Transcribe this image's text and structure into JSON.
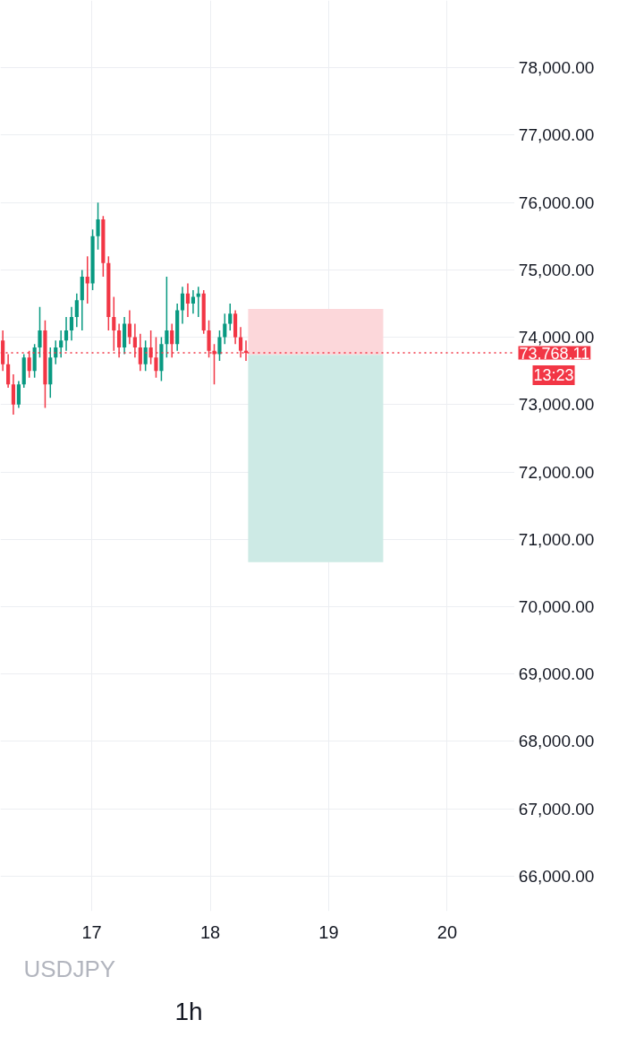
{
  "chart_data": {
    "type": "candlestick",
    "x": [
      16.25,
      16.295,
      16.339,
      16.384,
      16.428,
      16.473,
      16.518,
      16.562,
      16.607,
      16.651,
      16.696,
      16.741,
      16.785,
      16.83,
      16.874,
      16.919,
      16.964,
      17.008,
      17.053,
      17.097,
      17.142,
      17.187,
      17.231,
      17.276,
      17.32,
      17.365,
      17.41,
      17.454,
      17.499,
      17.543,
      17.588,
      17.633,
      17.677,
      17.722,
      17.766,
      17.811,
      17.856,
      17.9,
      17.945,
      17.989,
      18.034,
      18.079,
      18.123,
      18.168,
      18.212,
      18.257,
      18.302
    ],
    "ohlc": [
      [
        73950,
        74100,
        73500,
        73600
      ],
      [
        73600,
        73750,
        73250,
        73300
      ],
      [
        73300,
        73450,
        72850,
        73000
      ],
      [
        73000,
        73350,
        72950,
        73300
      ],
      [
        73300,
        73750,
        73250,
        73700
      ],
      [
        73700,
        73800,
        73400,
        73500
      ],
      [
        73500,
        73900,
        73400,
        73850
      ],
      [
        73850,
        74450,
        73700,
        74100
      ],
      [
        74100,
        74250,
        72950,
        73300
      ],
      [
        73300,
        73850,
        73100,
        73700
      ],
      [
        73700,
        73950,
        73600,
        73850
      ],
      [
        73850,
        74100,
        73700,
        73950
      ],
      [
        73950,
        74300,
        73800,
        74100
      ],
      [
        74100,
        74450,
        73950,
        74300
      ],
      [
        74300,
        74650,
        74150,
        74550
      ],
      [
        74550,
        75000,
        74100,
        74900
      ],
      [
        74900,
        75200,
        74500,
        74800
      ],
      [
        74800,
        75600,
        74700,
        75500
      ],
      [
        75500,
        76000,
        75300,
        75750
      ],
      [
        75750,
        75800,
        74900,
        75100
      ],
      [
        75100,
        75200,
        74100,
        74300
      ],
      [
        74300,
        74600,
        73800,
        74100
      ],
      [
        74100,
        74200,
        73700,
        73850
      ],
      [
        73850,
        74300,
        73750,
        74200
      ],
      [
        74200,
        74400,
        73900,
        74000
      ],
      [
        74000,
        74200,
        73700,
        73850
      ],
      [
        73850,
        74050,
        73500,
        73600
      ],
      [
        73600,
        73950,
        73500,
        73850
      ],
      [
        73850,
        74100,
        73600,
        73700
      ],
      [
        73700,
        74000,
        73400,
        73500
      ],
      [
        73500,
        74000,
        73350,
        73900
      ],
      [
        73900,
        74900,
        73700,
        74100
      ],
      [
        74100,
        74200,
        73700,
        73900
      ],
      [
        73900,
        74500,
        73800,
        74400
      ],
      [
        74400,
        74750,
        74200,
        74650
      ],
      [
        74650,
        74800,
        74300,
        74500
      ],
      [
        74500,
        74700,
        74350,
        74600
      ],
      [
        74600,
        74750,
        74300,
        74650
      ],
      [
        74650,
        74700,
        74050,
        74100
      ],
      [
        74100,
        74250,
        73700,
        73800
      ],
      [
        73800,
        73900,
        73300,
        73750
      ],
      [
        73750,
        74100,
        73650,
        74000
      ],
      [
        74000,
        74350,
        73900,
        74200
      ],
      [
        74200,
        74500,
        74100,
        74350
      ],
      [
        74350,
        74400,
        73900,
        74000
      ],
      [
        74000,
        74150,
        73700,
        73800
      ],
      [
        73800,
        73950,
        73650,
        73768.11
      ]
    ],
    "colors": [
      "#f23645",
      "#f23645",
      "#f23645",
      "#089981",
      "#089981",
      "#f23645",
      "#089981",
      "#089981",
      "#f23645",
      "#089981",
      "#089981",
      "#089981",
      "#089981",
      "#089981",
      "#089981",
      "#089981",
      "#f23645",
      "#089981",
      "#089981",
      "#f23645",
      "#f23645",
      "#f23645",
      "#f23645",
      "#089981",
      "#f23645",
      "#f23645",
      "#f23645",
      "#089981",
      "#f23645",
      "#f23645",
      "#089981",
      "#089981",
      "#f23645",
      "#089981",
      "#089981",
      "#f23645",
      "#089981",
      "#089981",
      "#f23645",
      "#f23645",
      "#f23645",
      "#089981",
      "#089981",
      "#089981",
      "#f23645",
      "#f23645",
      "#f23645"
    ],
    "series": [
      {
        "type": "bar",
        "color": "#fcd7da",
        "x": [
          18.89
        ],
        "base": [
          73740
        ],
        "values": [
          680
        ]
      },
      {
        "type": "bar",
        "color": "#cdeae5",
        "x": [
          18.89
        ],
        "base": [
          70660
        ],
        "values": [
          3080
        ]
      }
    ],
    "xlim": [
      16.23,
      20.57
    ],
    "ylim": [
      65480,
      79000
    ],
    "xticks": [
      17,
      18,
      19,
      20
    ],
    "yticks": [
      {
        "value": 66000,
        "label": "66,000.00"
      },
      {
        "value": 67000,
        "label": "67,000.00"
      },
      {
        "value": 68000,
        "label": "68,000.00"
      },
      {
        "value": 69000,
        "label": "69,000.00"
      },
      {
        "value": 70000,
        "label": "70,000.00"
      },
      {
        "value": 71000,
        "label": "71,000.00"
      },
      {
        "value": 72000,
        "label": "72,000.00"
      },
      {
        "value": 73000,
        "label": "73,000.00"
      },
      {
        "value": 74000,
        "label": "74,000.00"
      },
      {
        "value": 75000,
        "label": "75,000.00"
      },
      {
        "value": 76000,
        "label": "76,000.00"
      },
      {
        "value": 77000,
        "label": "77,000.00"
      },
      {
        "value": 78000,
        "label": "78,000.00"
      }
    ],
    "ref_lines": [
      {
        "axis": "y",
        "value": 73768.11,
        "label": "73,768.11",
        "color": "#f23645",
        "line_style": "dotted"
      }
    ],
    "annotations": [
      "13:23",
      "1h",
      "USDJPY"
    ],
    "grid": true
  }
}
